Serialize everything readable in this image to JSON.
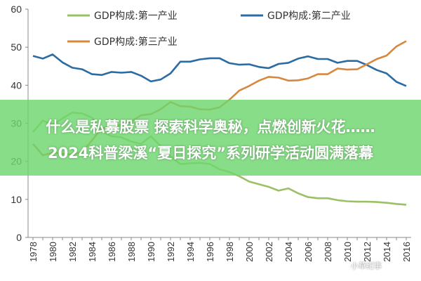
{
  "chart_data": {
    "type": "line",
    "title": "",
    "xlabel": "",
    "ylabel": "",
    "ylim": [
      0,
      60
    ],
    "yticks": [
      0,
      10,
      20,
      30,
      40,
      50,
      60
    ],
    "x": [
      1978,
      1979,
      1980,
      1981,
      1982,
      1983,
      1984,
      1985,
      1986,
      1987,
      1988,
      1989,
      1990,
      1991,
      1992,
      1993,
      1994,
      1995,
      1996,
      1997,
      1998,
      1999,
      2000,
      2001,
      2002,
      2003,
      2004,
      2005,
      2006,
      2007,
      2008,
      2009,
      2010,
      2011,
      2012,
      2013,
      2014,
      2015,
      2016
    ],
    "xticks": [
      "1978",
      "1980",
      "1982",
      "1984",
      "1986",
      "1988",
      "1990",
      "1992",
      "1994",
      "1996",
      "1998",
      "2000",
      "2002",
      "2004",
      "2006",
      "2008",
      "2010",
      "2012",
      "2014",
      "2016"
    ],
    "series": [
      {
        "name": "GDP构成:第一产业",
        "color": "#9bc167",
        "values": [
          27.7,
          30.7,
          29.6,
          31.3,
          32.8,
          32.6,
          31.5,
          27.9,
          26.6,
          26.3,
          25.2,
          24.6,
          26.6,
          24.0,
          21.3,
          19.3,
          19.5,
          19.6,
          19.3,
          17.9,
          17.2,
          16.1,
          14.7,
          14.0,
          13.3,
          12.3,
          12.9,
          11.6,
          10.6,
          10.3,
          10.3,
          9.8,
          9.5,
          9.4,
          9.4,
          9.3,
          9.1,
          8.8,
          8.6
        ]
      },
      {
        "name": "GDP构成:第二产业",
        "color": "#2a6ca3",
        "values": [
          47.7,
          47.0,
          48.1,
          46.0,
          44.6,
          44.2,
          42.9,
          42.7,
          43.5,
          43.3,
          43.5,
          42.5,
          41.0,
          41.5,
          43.1,
          46.2,
          46.2,
          46.8,
          47.1,
          47.1,
          45.8,
          45.4,
          45.5,
          44.8,
          44.5,
          45.6,
          45.9,
          47.0,
          47.6,
          46.9,
          46.9,
          45.9,
          46.4,
          46.4,
          45.3,
          44.0,
          43.1,
          40.9,
          39.8
        ]
      },
      {
        "name": "GDP构成:第三产业",
        "color": "#d8883e",
        "values": [
          24.6,
          21.6,
          22.3,
          22.0,
          21.8,
          22.4,
          25.5,
          28.7,
          29.1,
          29.6,
          30.5,
          32.1,
          32.4,
          33.7,
          35.6,
          34.5,
          34.4,
          33.7,
          33.6,
          34.2,
          36.2,
          38.6,
          39.8,
          41.2,
          42.2,
          42.0,
          41.2,
          41.3,
          41.8,
          42.9,
          42.9,
          44.4,
          44.1,
          44.2,
          45.5,
          46.9,
          47.8,
          50.2,
          51.6
        ]
      }
    ],
    "legend": "top",
    "grid": false
  },
  "overlay": {
    "headline1": "什么是私募股票 探索科学奥秘，点燃创新火花……",
    "headline2": "2024科普梁溪“夏日探究”系列研学活动圆满落幕",
    "headline2_cut": "幕"
  },
  "watermark": "小草纪事"
}
